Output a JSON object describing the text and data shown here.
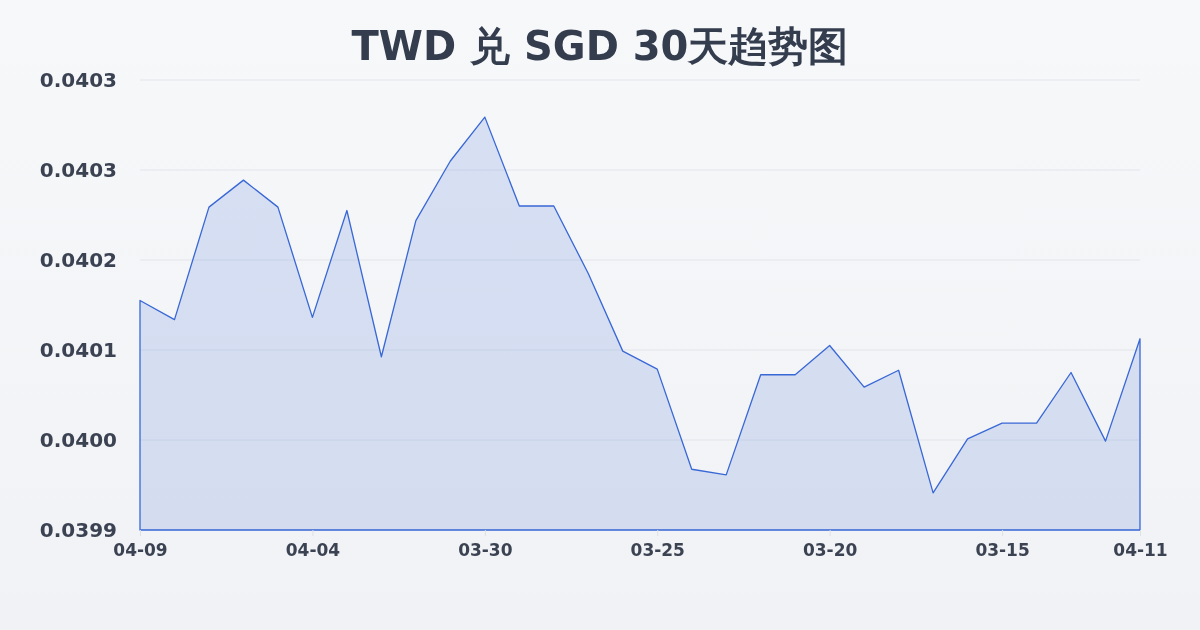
{
  "chart_data": {
    "type": "area",
    "title": "TWD 兑 SGD 30天趋势图",
    "categories": [
      "04-09",
      null,
      null,
      null,
      null,
      "04-04",
      null,
      null,
      null,
      null,
      "03-30",
      null,
      null,
      null,
      null,
      "03-25",
      null,
      null,
      null,
      null,
      "03-20",
      null,
      null,
      null,
      null,
      "03-15",
      null,
      null,
      null,
      "04-11"
    ],
    "values": [
      0.040144,
      0.040127,
      0.040227,
      0.040251,
      0.040227,
      0.040129,
      0.040224,
      0.040094,
      0.040215,
      0.040268,
      0.040307,
      0.040228,
      0.040228,
      0.040168,
      0.040099,
      0.040083,
      0.039994,
      0.039989,
      0.040078,
      0.040078,
      0.040104,
      0.040067,
      0.040082,
      0.039973,
      0.040021,
      0.040035,
      0.040035,
      0.04008,
      0.040019,
      0.04011
    ],
    "color": "#3867d6",
    "ylim": [
      0.03994,
      0.04034
    ],
    "yticks": [
      {
        "value": 0.03994,
        "label": "0.0399"
      },
      {
        "value": 0.04002,
        "label": "0.0400"
      },
      {
        "value": 0.0401,
        "label": "0.0401"
      },
      {
        "value": 0.04018,
        "label": "0.0402"
      },
      {
        "value": 0.04026,
        "label": "0.0403"
      },
      {
        "value": 0.04034,
        "label": "0.0403"
      }
    ],
    "grid": "y"
  }
}
